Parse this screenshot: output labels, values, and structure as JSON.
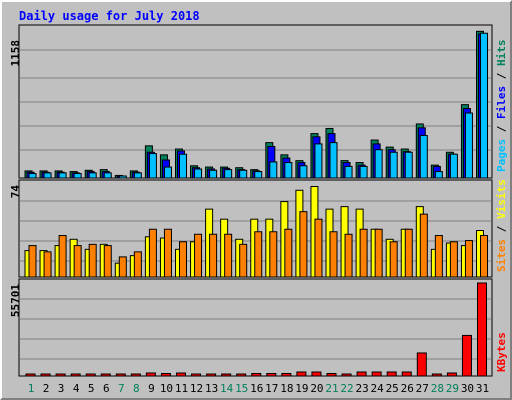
{
  "chart_data": [
    {
      "type": "bar",
      "panel": "hits-files-pages",
      "title": "Daily usage for July 2018",
      "categories": [
        "1",
        "2",
        "3",
        "4",
        "5",
        "6",
        "7",
        "8",
        "9",
        "10",
        "11",
        "12",
        "13",
        "14",
        "15",
        "16",
        "17",
        "18",
        "19",
        "20",
        "21",
        "22",
        "23",
        "24",
        "25",
        "26",
        "27",
        "28",
        "29",
        "30",
        "31"
      ],
      "weekend_days": [
        "1",
        "7",
        "8",
        "14",
        "15",
        "21",
        "22",
        "28",
        "29"
      ],
      "ymax_label": "1158",
      "ylim": [
        0,
        1158
      ],
      "grid": true,
      "series": [
        {
          "name": "Hits",
          "color": "#00805c",
          "values": [
            55,
            55,
            55,
            50,
            60,
            65,
            20,
            55,
            250,
            180,
            225,
            95,
            85,
            85,
            80,
            65,
            275,
            180,
            135,
            345,
            385,
            135,
            120,
            295,
            240,
            225,
            420,
            100,
            200,
            570,
            1140
          ]
        },
        {
          "name": "Files",
          "color": "#0000ff",
          "values": [
            45,
            45,
            45,
            40,
            50,
            50,
            15,
            45,
            200,
            140,
            210,
            80,
            70,
            75,
            65,
            55,
            245,
            155,
            120,
            320,
            345,
            120,
            100,
            265,
            220,
            205,
            390,
            90,
            185,
            540,
            1120
          ]
        },
        {
          "name": "Pages",
          "color": "#00c0ff",
          "values": [
            35,
            40,
            40,
            35,
            40,
            40,
            15,
            40,
            190,
            85,
            185,
            70,
            60,
            65,
            60,
            50,
            125,
            120,
            95,
            265,
            275,
            90,
            90,
            220,
            200,
            200,
            330,
            50,
            185,
            505,
            1125
          ]
        }
      ]
    },
    {
      "type": "bar",
      "panel": "visits-sites",
      "categories": [
        "1",
        "2",
        "3",
        "4",
        "5",
        "6",
        "7",
        "8",
        "9",
        "10",
        "11",
        "12",
        "13",
        "14",
        "15",
        "16",
        "17",
        "18",
        "19",
        "20",
        "21",
        "22",
        "23",
        "24",
        "25",
        "26",
        "27",
        "28",
        "29",
        "30",
        "31"
      ],
      "ymax_label": "74",
      "ylim": [
        0,
        74
      ],
      "grid": true,
      "series": [
        {
          "name": "Visits",
          "color": "#ffff00",
          "values": [
            21,
            21,
            25,
            30,
            22,
            26,
            11,
            17,
            32,
            31,
            22,
            28,
            54,
            46,
            30,
            46,
            46,
            60,
            69,
            72,
            54,
            56,
            54,
            38,
            30,
            38,
            56,
            22,
            27,
            25,
            37
          ]
        },
        {
          "name": "Sites",
          "color": "#ff8000",
          "values": [
            25,
            20,
            33,
            25,
            26,
            25,
            16,
            20,
            38,
            38,
            28,
            34,
            34,
            34,
            26,
            36,
            36,
            38,
            52,
            46,
            36,
            34,
            38,
            38,
            28,
            38,
            50,
            33,
            28,
            29,
            33
          ]
        }
      ]
    },
    {
      "type": "bar",
      "panel": "kbytes",
      "categories": [
        "1",
        "2",
        "3",
        "4",
        "5",
        "6",
        "7",
        "8",
        "9",
        "10",
        "11",
        "12",
        "13",
        "14",
        "15",
        "16",
        "17",
        "18",
        "19",
        "20",
        "21",
        "22",
        "23",
        "24",
        "25",
        "26",
        "27",
        "28",
        "29",
        "30",
        "31"
      ],
      "ymax_label": "55701",
      "ylim": [
        0,
        55701
      ],
      "grid": true,
      "series": [
        {
          "name": "KBytes",
          "color": "#ff0000",
          "values": [
            600,
            600,
            600,
            600,
            600,
            600,
            600,
            600,
            1800,
            1500,
            1800,
            900,
            900,
            900,
            900,
            1500,
            1500,
            1500,
            2400,
            2400,
            1500,
            1200,
            2400,
            2400,
            2400,
            2400,
            13800,
            1200,
            1800,
            24300,
            55701
          ]
        }
      ]
    }
  ]
}
